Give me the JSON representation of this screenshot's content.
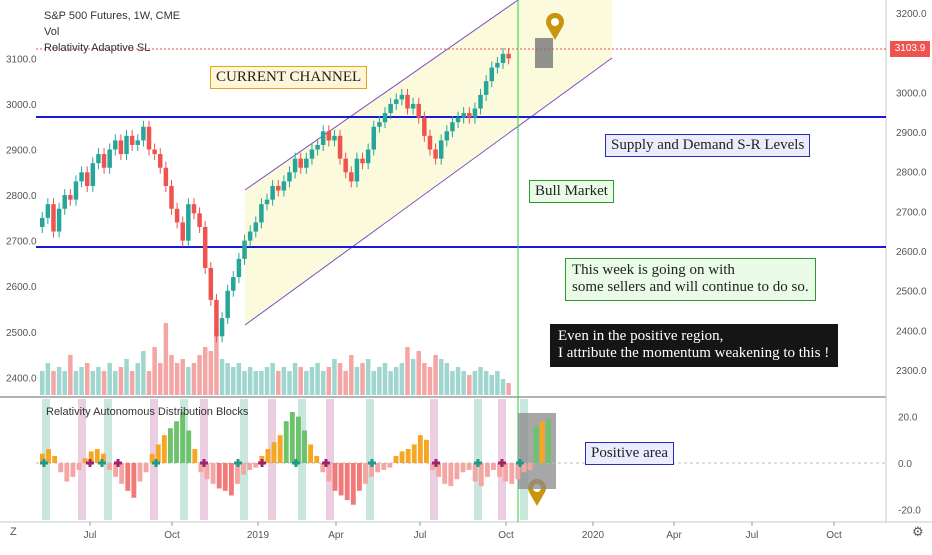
{
  "header": {
    "symbol_line": "S&P 500 Futures, 1W, CME",
    "vol_label": "Vol",
    "indicator_label": "Relativity Adaptive SL"
  },
  "sub_pane": {
    "title": "Relativity Autonomous Distribution Blocks"
  },
  "price_badge": "3103.9",
  "annotations": {
    "current_channel": "CURRENT CHANNEL",
    "sr_levels": "Supply and Demand S-R Levels",
    "bull_market": "Bull Market",
    "week_note_1": "This week is going on with",
    "week_note_2": "some sellers and will continue to do so.",
    "momentum_1": "Even in the positive region,",
    "momentum_2": " I attribute the momentum weakening to this !",
    "positive_area": "Positive area"
  },
  "toolbar": {
    "zoom_label": "Z",
    "settings_glyph": "⚙"
  },
  "colors": {
    "up": "#26a69a",
    "down": "#ef5350",
    "sr_line": "#1a1ad6",
    "channel": "#7b4fc4",
    "vertical_marker": "#2ecc40",
    "marker_pin": "#c8960c",
    "badge": "#ef5350"
  },
  "chart_data": [
    {
      "type": "candlestick",
      "title": "S&P 500 Futures, 1W, CME",
      "y_axis_ticks_left": [
        "2400.0",
        "2500.0",
        "2600.0",
        "2700.0",
        "2800.0",
        "2900.0",
        "3000.0",
        "3100.0"
      ],
      "y_axis_ticks_right": [
        "2300.0",
        "2400.0",
        "2500.0",
        "2600.0",
        "2700.0",
        "2800.0",
        "2900.0",
        "3000.0",
        "3100.0",
        "3200.0"
      ],
      "x_axis_ticks": [
        "Jul",
        "Oct",
        "2019",
        "Apr",
        "Jul",
        "Oct",
        "2020",
        "Apr",
        "Jul",
        "Oct"
      ],
      "ylim": [
        2370,
        3215
      ],
      "support_resistance_levels": [
        2940,
        2610
      ],
      "last_price": 3103.9,
      "channel": {
        "lower_start": [
          0.0,
          2500
        ],
        "lower_end": [
          1.0,
          3080
        ],
        "upper_start": [
          0.0,
          2820
        ],
        "upper_end": [
          1.0,
          3270
        ]
      },
      "ohlc_close": [
        2750,
        2780,
        2720,
        2770,
        2800,
        2790,
        2830,
        2850,
        2820,
        2870,
        2890,
        2860,
        2900,
        2920,
        2890,
        2930,
        2910,
        2920,
        2950,
        2900,
        2890,
        2860,
        2820,
        2770,
        2740,
        2700,
        2780,
        2760,
        2730,
        2640,
        2570,
        2490,
        2530,
        2590,
        2620,
        2660,
        2700,
        2720,
        2740,
        2780,
        2790,
        2820,
        2810,
        2830,
        2850,
        2880,
        2860,
        2880,
        2900,
        2910,
        2940,
        2920,
        2930,
        2880,
        2850,
        2830,
        2880,
        2870,
        2900,
        2950,
        2960,
        2980,
        3000,
        3010,
        3020,
        2990,
        3000,
        2970,
        2930,
        2900,
        2880,
        2920,
        2940,
        2960,
        2970,
        2980,
        2970,
        2990,
        3020,
        3050,
        3080,
        3090,
        3110,
        3100
      ],
      "volume_relative": [
        0.3,
        0.4,
        0.3,
        0.35,
        0.3,
        0.5,
        0.3,
        0.35,
        0.4,
        0.3,
        0.35,
        0.3,
        0.4,
        0.3,
        0.35,
        0.45,
        0.3,
        0.4,
        0.55,
        0.3,
        0.6,
        0.4,
        0.9,
        0.5,
        0.4,
        0.45,
        0.35,
        0.4,
        0.5,
        0.6,
        0.55,
        0.8,
        0.45,
        0.4,
        0.35,
        0.4,
        0.3,
        0.35,
        0.3,
        0.3,
        0.35,
        0.4,
        0.3,
        0.35,
        0.3,
        0.4,
        0.35,
        0.3,
        0.35,
        0.4,
        0.3,
        0.35,
        0.45,
        0.4,
        0.3,
        0.5,
        0.35,
        0.4,
        0.45,
        0.3,
        0.35,
        0.4,
        0.3,
        0.35,
        0.4,
        0.6,
        0.45,
        0.55,
        0.4,
        0.35,
        0.5,
        0.45,
        0.4,
        0.3,
        0.35,
        0.3,
        0.25,
        0.3,
        0.35,
        0.3,
        0.25,
        0.3,
        0.2,
        0.15
      ]
    },
    {
      "type": "bar",
      "title": "Relativity Autonomous Distribution Blocks",
      "y_axis_ticks": [
        "20.0",
        "0.0",
        "-20.0"
      ],
      "ylim": [
        -22,
        25
      ],
      "values": [
        4,
        6,
        3,
        -4,
        -8,
        -6,
        -3,
        2,
        5,
        6,
        4,
        -3,
        -6,
        -9,
        -12,
        -15,
        -8,
        -4,
        4,
        8,
        12,
        15,
        18,
        22,
        14,
        6,
        -4,
        -7,
        -9,
        -11,
        -12,
        -14,
        -9,
        -5,
        -3,
        -2,
        3,
        6,
        9,
        12,
        18,
        22,
        20,
        14,
        8,
        3,
        -4,
        -8,
        -12,
        -14,
        -16,
        -18,
        -12,
        -9,
        -6,
        -4,
        -3,
        -2,
        3,
        5,
        6,
        8,
        12,
        10,
        -3,
        -6,
        -9,
        -10,
        -7,
        -4,
        -3,
        -8,
        -10,
        -6,
        -3,
        -6,
        -8,
        -9,
        -7,
        -4,
        -3,
        16,
        18,
        19
      ]
    }
  ]
}
